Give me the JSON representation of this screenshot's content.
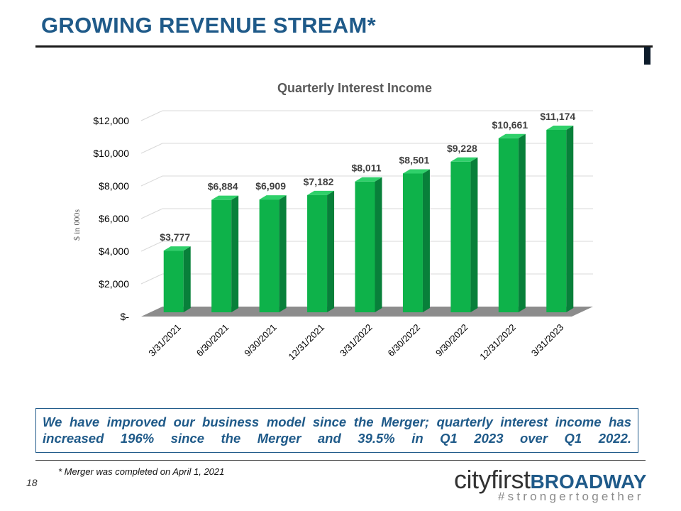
{
  "page": {
    "title": "GROWING REVENUE STREAM*",
    "callout": "We have improved our business model since the Merger; quarterly interest income has increased 196% since the Merger and 39.5% in Q1 2023 over Q1 2022.",
    "footnote": "* Merger was completed on April 1, 2021",
    "page_number": "18"
  },
  "logo": {
    "city": "cityfirst",
    "broadway": "BROADWAY",
    "tagline": "#strongertogether"
  },
  "colors": {
    "title_blue": "#1f5a89",
    "bar_front": "#0eb24a",
    "bar_side": "#08803a",
    "bar_top": "#2fd06a",
    "floor": "#8c8c8c"
  },
  "chart_data": {
    "type": "bar",
    "title": "Quarterly Interest Income",
    "ylabel": "$ in 000s",
    "xlabel": "",
    "ylim": [
      0,
      12000
    ],
    "yticks": [
      0,
      2000,
      4000,
      6000,
      8000,
      10000,
      12000
    ],
    "ytick_labels": [
      "$-",
      "$2,000",
      "$4,000",
      "$6,000",
      "$8,000",
      "$10,000",
      "$12,000"
    ],
    "categories": [
      "3/31/2021",
      "6/30/2021",
      "9/30/2021",
      "12/31/2021",
      "3/31/2022",
      "6/30/2022",
      "9/30/2022",
      "12/31/2022",
      "3/31/2023"
    ],
    "values": [
      3777,
      6884,
      6909,
      7182,
      8011,
      8501,
      9228,
      10661,
      11174
    ],
    "value_labels": [
      "$3,777",
      "$6,884",
      "$6,909",
      "$7,182",
      "$8,011",
      "$8,501",
      "$9,228",
      "$10,661",
      "$11,174"
    ],
    "grid": true,
    "style": "3d"
  }
}
